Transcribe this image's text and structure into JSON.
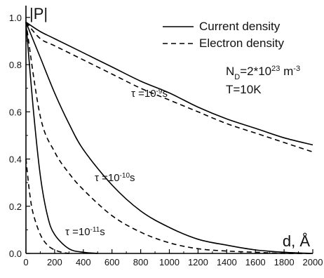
{
  "chart_data": {
    "type": "line",
    "xlabel": "d, Å",
    "ylabel": "|P|",
    "xlim": [
      0,
      2000
    ],
    "ylim": [
      0,
      1.05
    ],
    "xticks": [
      0,
      200,
      400,
      600,
      800,
      1000,
      1200,
      1400,
      1600,
      1800,
      2000
    ],
    "yticks": [
      0.0,
      0.2,
      0.4,
      0.6,
      0.8,
      1.0
    ],
    "grid": false,
    "legend_position": "top-right",
    "legend": [
      {
        "label": "Current density",
        "style": "solid"
      },
      {
        "label": "Electron density",
        "style": "dashed"
      }
    ],
    "annotations": [
      {
        "text": "N",
        "sub": "D",
        "tail": "=2*10",
        "sup": "23",
        "unit": " m",
        "unitsup": "-3"
      },
      {
        "text": "T=10K"
      },
      {
        "prefix": "τ =10",
        "sup": "-9",
        "suffix": "s"
      },
      {
        "prefix": "τ =10",
        "sup": "-10",
        "suffix": "s"
      },
      {
        "prefix": "τ =10",
        "sup": "-11",
        "suffix": "s"
      }
    ],
    "series": [
      {
        "style": "solid",
        "tau": "1e-9",
        "x": [
          0,
          100,
          200,
          400,
          600,
          800,
          1000,
          1200,
          1400,
          1600,
          1800,
          2000
        ],
        "y": [
          0.98,
          0.94,
          0.91,
          0.85,
          0.79,
          0.73,
          0.68,
          0.62,
          0.57,
          0.53,
          0.49,
          0.46
        ]
      },
      {
        "style": "dashed",
        "tau": "1e-9",
        "x": [
          0,
          100,
          200,
          400,
          600,
          800,
          1000,
          1200,
          1400,
          1600,
          1800,
          2000
        ],
        "y": [
          0.98,
          0.91,
          0.88,
          0.82,
          0.76,
          0.7,
          0.65,
          0.6,
          0.55,
          0.51,
          0.47,
          0.43
        ]
      },
      {
        "style": "solid",
        "tau": "1e-10",
        "x": [
          0,
          100,
          200,
          300,
          400,
          600,
          800,
          1000,
          1200,
          1400,
          1600,
          1800,
          2000
        ],
        "y": [
          0.98,
          0.83,
          0.68,
          0.55,
          0.44,
          0.29,
          0.18,
          0.11,
          0.06,
          0.035,
          0.015,
          0.005,
          0.0
        ]
      },
      {
        "style": "dashed",
        "tau": "1e-10",
        "x": [
          0,
          100,
          200,
          300,
          400,
          600,
          800,
          1000,
          1200,
          1400,
          1600,
          1800,
          2000
        ],
        "y": [
          0.98,
          0.58,
          0.43,
          0.34,
          0.27,
          0.16,
          0.09,
          0.045,
          0.02,
          0.01,
          0.005,
          0.0,
          0.0
        ]
      },
      {
        "style": "solid",
        "tau": "1e-11",
        "x": [
          0,
          50,
          100,
          150,
          200,
          300,
          400,
          500
        ],
        "y": [
          0.98,
          0.62,
          0.33,
          0.16,
          0.08,
          0.02,
          0.005,
          0.0
        ]
      },
      {
        "style": "dashed",
        "tau": "1e-11",
        "x": [
          0,
          25,
          50,
          100,
          150,
          200,
          250,
          300
        ],
        "y": [
          0.4,
          0.26,
          0.17,
          0.08,
          0.035,
          0.015,
          0.005,
          0.0
        ]
      }
    ]
  }
}
